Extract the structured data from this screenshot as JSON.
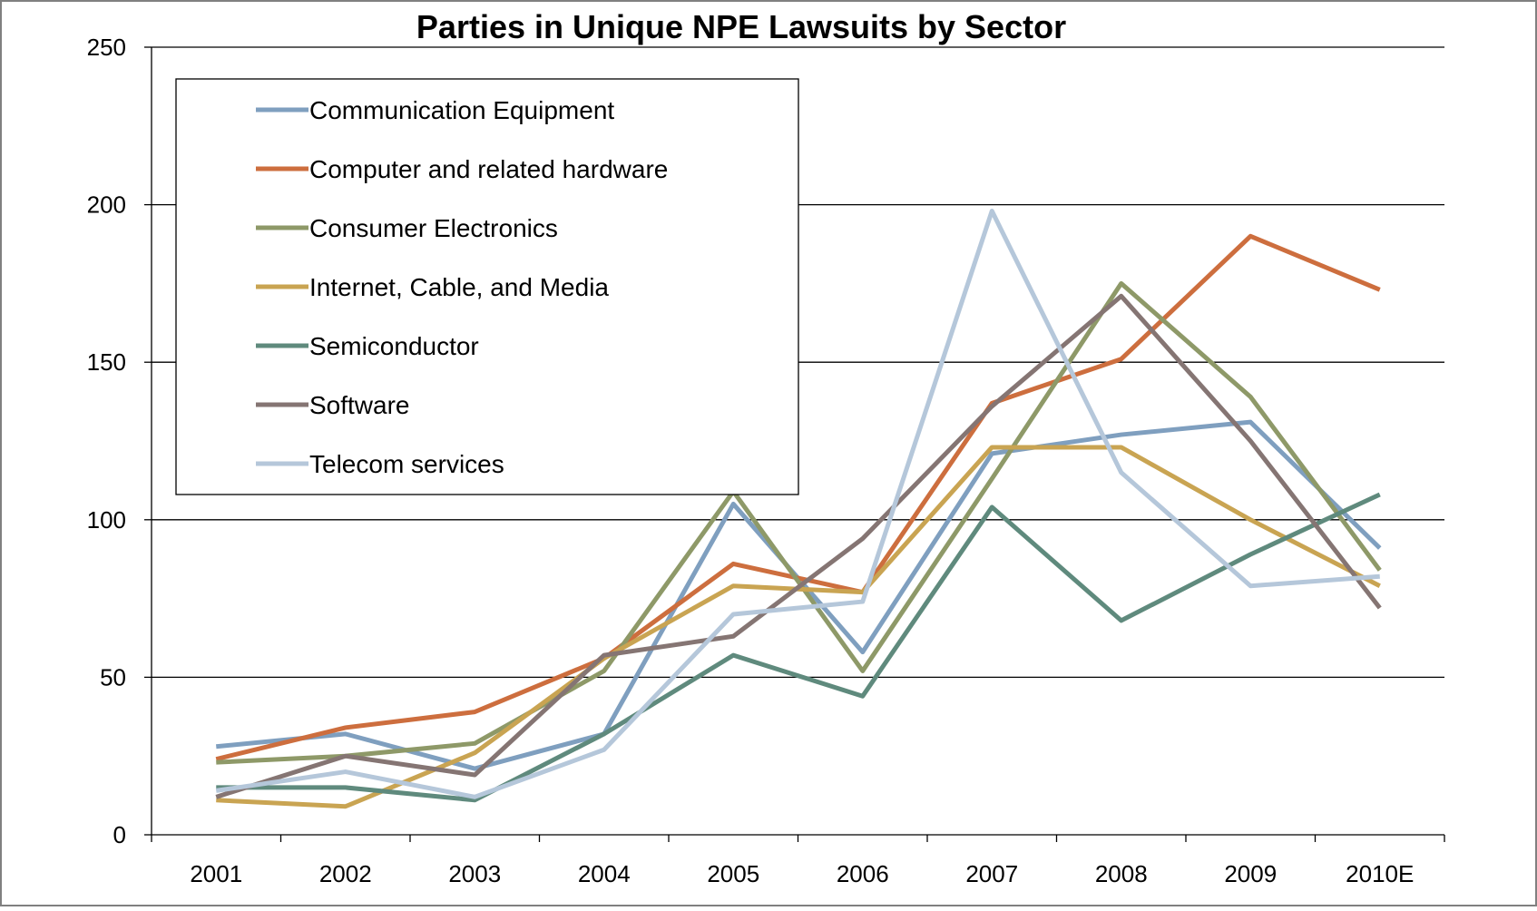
{
  "chart_data": {
    "type": "line",
    "title": "Parties in Unique NPE Lawsuits by Sector",
    "xlabel": "",
    "ylabel": "",
    "ylim": [
      0,
      250
    ],
    "yticks": [
      "0",
      "50",
      "100",
      "150",
      "200",
      "250"
    ],
    "categories": [
      "2001",
      "2002",
      "2003",
      "2004",
      "2005",
      "2006",
      "2007",
      "2008",
      "2009",
      "2010E"
    ],
    "grid": true,
    "legend_position": "top-left",
    "series": [
      {
        "name": "Communication Equipment",
        "color": "#7f9fbf",
        "values": [
          28,
          32,
          21,
          32,
          105,
          58,
          121,
          127,
          131,
          91
        ]
      },
      {
        "name": "Computer and related hardware",
        "color": "#cd6e3e",
        "values": [
          24,
          34,
          39,
          56,
          86,
          77,
          137,
          151,
          190,
          173
        ]
      },
      {
        "name": "Consumer Electronics",
        "color": "#8e9968",
        "values": [
          23,
          25,
          29,
          52,
          109,
          52,
          113,
          175,
          139,
          84
        ]
      },
      {
        "name": "Internet, Cable, and Media",
        "color": "#c9a452",
        "values": [
          11,
          9,
          26,
          56,
          79,
          77,
          123,
          123,
          100,
          79
        ]
      },
      {
        "name": "Semiconductor",
        "color": "#5f8a7d",
        "values": [
          15,
          15,
          11,
          32,
          57,
          44,
          104,
          68,
          89,
          108
        ]
      },
      {
        "name": "Software",
        "color": "#857573",
        "values": [
          12,
          25,
          19,
          57,
          63,
          94,
          136,
          171,
          125,
          72
        ]
      },
      {
        "name": "Telecom services",
        "color": "#b5c7da",
        "values": [
          14,
          20,
          12,
          27,
          70,
          74,
          198,
          115,
          79,
          82
        ]
      }
    ]
  }
}
